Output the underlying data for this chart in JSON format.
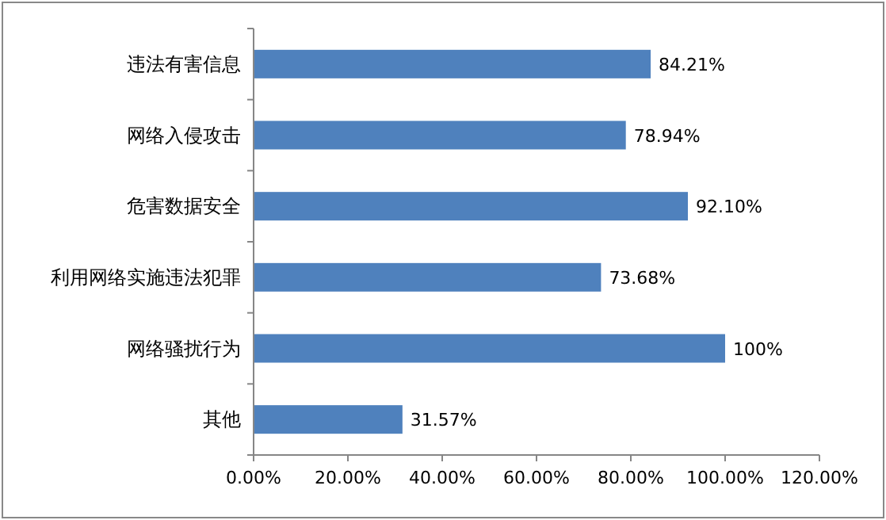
{
  "chart_data": {
    "type": "bar",
    "orientation": "horizontal",
    "categories": [
      "违法有害信息",
      "网络入侵攻击",
      "危害数据安全",
      "利用网络实施违法犯罪",
      "网络骚扰行为",
      "其他"
    ],
    "values": [
      84.21,
      78.94,
      92.1,
      73.68,
      100,
      31.57
    ],
    "value_labels": [
      "84.21%",
      "78.94%",
      "92.10%",
      "73.68%",
      "100%",
      "31.57%"
    ],
    "color": "#4f81bd",
    "xlim": [
      0,
      120
    ],
    "xticks": [
      {
        "value": 0,
        "label": "0.00%"
      },
      {
        "value": 20,
        "label": "20.00%"
      },
      {
        "value": 40,
        "label": "40.00%"
      },
      {
        "value": 60,
        "label": "60.00%"
      },
      {
        "value": 80,
        "label": "80.00%"
      },
      {
        "value": 100,
        "label": "100.00%"
      },
      {
        "value": 120,
        "label": "120.00%"
      }
    ],
    "grid": false
  }
}
